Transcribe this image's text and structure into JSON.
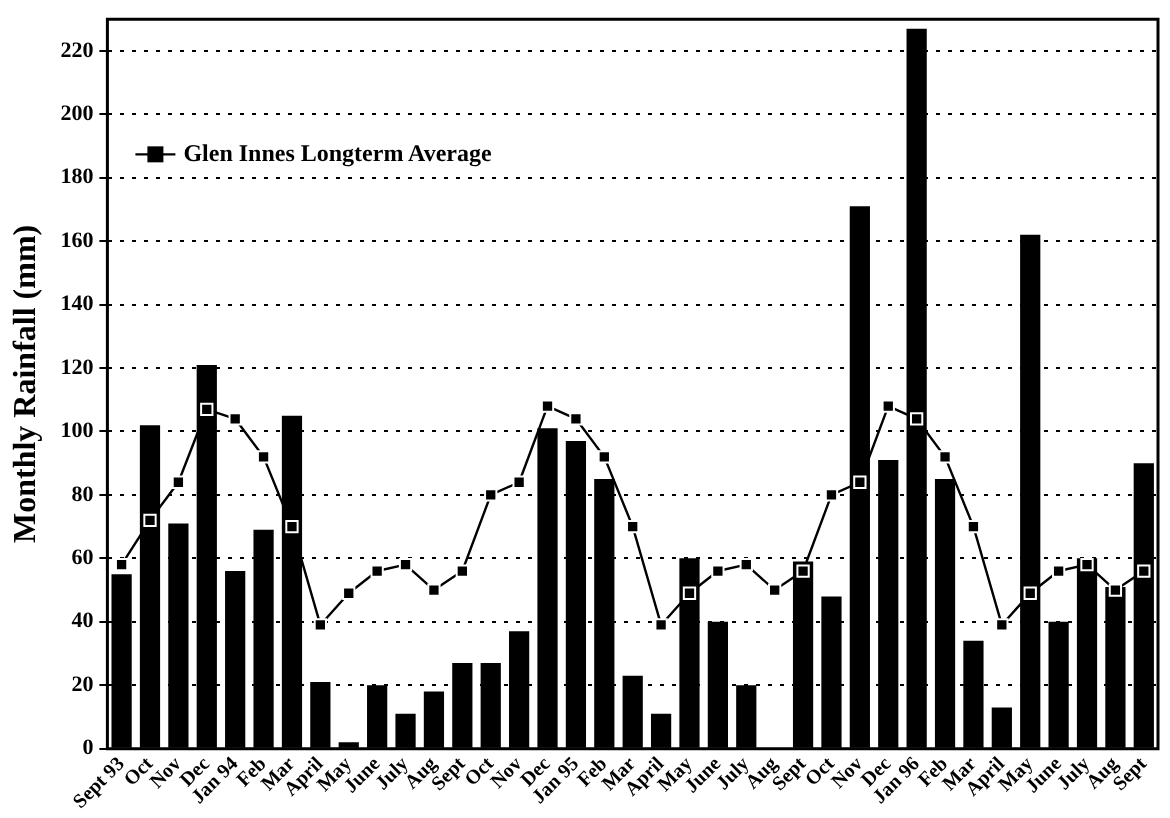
{
  "chart_data": {
    "type": "bar",
    "ylabel": "Monthly Rainfall (mm)",
    "categories": [
      "Sept 93",
      "Oct",
      "Nov",
      "Dec",
      "Jan 94",
      "Feb",
      "Mar",
      "April",
      "May",
      "June",
      "July",
      "Aug",
      "Sept",
      "Oct",
      "Nov",
      "Dec",
      "Jan 95",
      "Feb",
      "Mar",
      "April",
      "May",
      "June",
      "July",
      "Aug",
      "Sept",
      "Oct",
      "Nov",
      "Dec",
      "Jan 96",
      "Feb",
      "Mar",
      "April",
      "May",
      "June",
      "July",
      "Aug",
      "Sept"
    ],
    "series": [
      {
        "color": "#000000",
        "values": [
          55,
          102,
          71,
          121,
          56,
          69,
          105,
          21,
          2,
          20,
          11,
          18,
          27,
          27,
          37,
          101,
          97,
          85,
          23,
          11,
          60,
          40,
          20,
          0,
          59,
          48,
          171,
          91,
          227,
          85,
          34,
          13,
          162,
          40,
          60,
          51,
          90
        ]
      },
      {
        "type": "line",
        "name": "Glen Innes Longterm Average",
        "color": "#000000",
        "marker": "square",
        "values": [
          58,
          72,
          84,
          107,
          104,
          92,
          70,
          39,
          49,
          56,
          58,
          50,
          56,
          80,
          84,
          108,
          104,
          92,
          70,
          39,
          49,
          56,
          58,
          50,
          56,
          80,
          84,
          108,
          104,
          92,
          70,
          39,
          49,
          56,
          58,
          50,
          56
        ]
      }
    ],
    "ylim": [
      0,
      230
    ],
    "yticks": [
      0,
      20,
      40,
      60,
      80,
      100,
      120,
      140,
      160,
      180,
      200,
      220
    ],
    "grid": "y",
    "legend": "top left"
  }
}
